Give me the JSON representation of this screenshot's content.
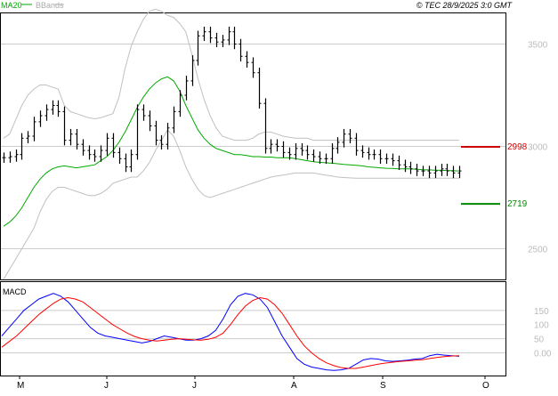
{
  "header": {
    "ma_label": "MA20",
    "bb_label": "BBands",
    "credit": "© TEC 28/9/2025 3:0 GMT"
  },
  "colors": {
    "ma": "#00aa00",
    "bbands": "#c0c0c0",
    "candles": "#000000",
    "macd": "#0000ff",
    "signal": "#ff0000",
    "resistance": "#cc0000",
    "support": "#008800",
    "grid": "#cccccc"
  },
  "chart_data": [
    {
      "type": "line",
      "title": "",
      "ylim": [
        2350,
        3650
      ],
      "y_ticks": [
        {
          "value": 3500,
          "label": "3500"
        },
        {
          "value": 3000,
          "label": "3000"
        },
        {
          "value": 2500,
          "label": "2500"
        }
      ],
      "x_ticks": [
        "M",
        "J",
        "J",
        "A",
        "S",
        "O"
      ],
      "levels": [
        {
          "name": "resistance",
          "value": 2998,
          "label": "2998"
        },
        {
          "name": "support",
          "value": 2719,
          "label": "2719"
        }
      ],
      "grid": true,
      "ohlc_close": [
        2945,
        2950,
        2960,
        3040,
        3050,
        3120,
        3150,
        3180,
        3200,
        3170,
        3030,
        3060,
        3010,
        2980,
        2960,
        2950,
        2980,
        3040,
        2970,
        2940,
        2900,
        2960,
        3180,
        3150,
        3100,
        3030,
        3010,
        3090,
        3170,
        3250,
        3320,
        3420,
        3540,
        3560,
        3530,
        3510,
        3520,
        3560,
        3500,
        3440,
        3410,
        3360,
        3210,
        2990,
        3010,
        3000,
        2970,
        2960,
        2990,
        2980,
        2960,
        2950,
        2940,
        2940,
        2990,
        3020,
        3060,
        3040,
        2980,
        2970,
        2960,
        2960,
        2940,
        2940,
        2930,
        2910,
        2900,
        2890,
        2880,
        2880,
        2870,
        2880,
        2890,
        2880,
        2870,
        2880
      ],
      "ma20": [
        2610,
        2630,
        2660,
        2700,
        2750,
        2800,
        2840,
        2870,
        2890,
        2900,
        2905,
        2900,
        2895,
        2900,
        2905,
        2910,
        2930,
        2950,
        2980,
        3020,
        3070,
        3130,
        3190,
        3240,
        3280,
        3310,
        3330,
        3340,
        3320,
        3270,
        3200,
        3140,
        3080,
        3040,
        3010,
        2990,
        2980,
        2970,
        2960,
        2960,
        2955,
        2950,
        2950,
        2948,
        2948,
        2945,
        2945,
        2945,
        2940,
        2935,
        2930,
        2925,
        2922,
        2920,
        2918,
        2915,
        2912,
        2910,
        2908,
        2905,
        2900,
        2898,
        2895,
        2893,
        2892,
        2890,
        2890,
        2890,
        2888,
        2886,
        2885,
        2884,
        2883,
        2882,
        2881,
        2880
      ],
      "bb_upper": [
        3040,
        3060,
        3130,
        3200,
        3250,
        3280,
        3300,
        3300,
        3290,
        3280,
        3200,
        3170,
        3160,
        3150,
        3140,
        3135,
        3140,
        3150,
        3160,
        3240,
        3380,
        3490,
        3560,
        3620,
        3660,
        3670,
        3660,
        3640,
        3630,
        3600,
        3560,
        3450,
        3330,
        3230,
        3150,
        3090,
        3050,
        3040,
        3030,
        3030,
        3030,
        3040,
        3060,
        3070,
        3070,
        3060,
        3050,
        3045,
        3040,
        3040,
        3040,
        3030,
        3030,
        3030,
        3030,
        3030,
        3030,
        3030,
        3030,
        3030,
        3030,
        3030,
        3030,
        3030,
        3030,
        3030,
        3030,
        3030,
        3030,
        3030,
        3030,
        3030,
        3030,
        3030,
        3030,
        3030
      ],
      "bb_lower": [
        2350,
        2400,
        2450,
        2500,
        2550,
        2600,
        2680,
        2740,
        2780,
        2800,
        2800,
        2790,
        2780,
        2770,
        2760,
        2760,
        2770,
        2790,
        2820,
        2830,
        2840,
        2850,
        2850,
        2880,
        2920,
        2980,
        3030,
        3080,
        3050,
        2980,
        2900,
        2840,
        2790,
        2760,
        2750,
        2760,
        2770,
        2780,
        2790,
        2800,
        2810,
        2820,
        2830,
        2840,
        2850,
        2855,
        2860,
        2865,
        2870,
        2870,
        2870,
        2870,
        2865,
        2860,
        2855,
        2850,
        2848,
        2846,
        2845,
        2845,
        2845,
        2845,
        2845,
        2845,
        2845,
        2845,
        2845,
        2845,
        2845,
        2845,
        2845,
        2845,
        2845,
        2845,
        2845,
        2845
      ]
    },
    {
      "type": "line",
      "title": "MACD",
      "ylim": [
        -80,
        250
      ],
      "y_ticks": [
        {
          "value": 150,
          "label": "150"
        },
        {
          "value": 100,
          "label": "100"
        },
        {
          "value": 50,
          "label": "50"
        },
        {
          "value": 0,
          "label": "0.00"
        }
      ],
      "series": [
        {
          "name": "macd",
          "values": [
            60,
            90,
            120,
            150,
            170,
            190,
            200,
            210,
            200,
            180,
            150,
            120,
            90,
            70,
            60,
            55,
            50,
            45,
            40,
            35,
            40,
            50,
            60,
            55,
            50,
            45,
            45,
            50,
            60,
            80,
            120,
            170,
            200,
            210,
            205,
            190,
            160,
            110,
            60,
            20,
            -20,
            -40,
            -50,
            -55,
            -60,
            -62,
            -60,
            -55,
            -40,
            -25,
            -20,
            -22,
            -28,
            -30,
            -28,
            -26,
            -22,
            -20,
            -10,
            -5,
            -8,
            -10,
            -12
          ]
        },
        {
          "name": "signal",
          "values": [
            20,
            40,
            60,
            85,
            110,
            135,
            155,
            175,
            190,
            195,
            190,
            180,
            160,
            140,
            120,
            100,
            85,
            70,
            58,
            50,
            45,
            42,
            45,
            48,
            50,
            48,
            46,
            45,
            48,
            55,
            70,
            100,
            135,
            165,
            185,
            195,
            190,
            170,
            140,
            100,
            60,
            25,
            0,
            -20,
            -35,
            -45,
            -52,
            -55,
            -55,
            -50,
            -45,
            -40,
            -36,
            -33,
            -30,
            -28,
            -26,
            -24,
            -20,
            -16,
            -13,
            -11,
            -10
          ]
        }
      ]
    }
  ]
}
